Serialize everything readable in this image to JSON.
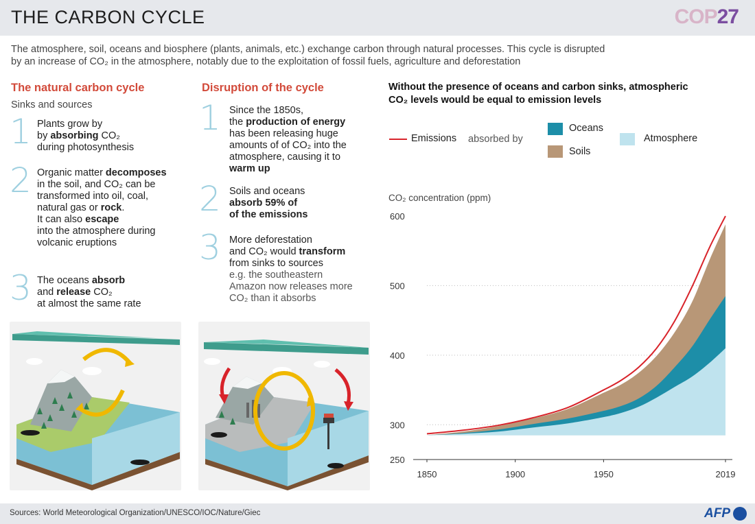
{
  "header": {
    "title": "THE CARBON CYCLE",
    "logo_part1": "COP",
    "logo_part2": "27"
  },
  "intro": {
    "line1": "The atmosphere, soil, oceans and biosphere (plants, animals, etc.) exchange carbon through natural processes. This cycle is disrupted",
    "line2": "by an increase of CO₂ in the atmosphere, notably due to the exploitation of fossil fuels, agriculture and deforestation"
  },
  "natural": {
    "heading": "The natural carbon cycle",
    "subheading": "Sinks and sources",
    "steps": [
      {
        "num": "1",
        "lines": [
          "Plants grow by",
          "by **absorbing** CO₂",
          "during photosynthesis"
        ]
      },
      {
        "num": "2",
        "lines": [
          "Organic matter **decomposes**",
          "in the soil, and CO₂ can be",
          "transformed into oil, coal,",
          "natural gas or **rock**.",
          "It can also **escape**",
          "into the atmosphere during",
          "volcanic eruptions"
        ]
      },
      {
        "num": "3",
        "lines": [
          "The oceans **absorb**",
          "and **release** CO₂",
          "at almost the same rate"
        ]
      }
    ]
  },
  "disruption": {
    "heading": "Disruption of the cycle",
    "steps": [
      {
        "num": "1",
        "lines": [
          "Since the 1850s,",
          "the **production of energy**",
          "has been releasing huge",
          "amounts of of CO₂ into the",
          "atmosphere, causing it to",
          "**warm up**"
        ]
      },
      {
        "num": "2",
        "lines": [
          "Soils and oceans",
          "**absorb 59% of**",
          "**of the emissions**"
        ]
      },
      {
        "num": "3",
        "lines": [
          "More deforestation",
          "and CO₂ would **transform**",
          "from sinks to sources",
          "~e.g. the southeastern",
          "~Amazon now releases more",
          "~CO₂ than it absorbs"
        ]
      }
    ]
  },
  "chart": {
    "title_line1": "Without the presence of oceans and carbon sinks, atmospheric",
    "title_line2": "CO₂ levels would be equal to emission levels",
    "legend_emissions": "Emissions",
    "legend_absorbed": "absorbed by",
    "legend_oceans": "Oceans",
    "legend_soils": "Soils",
    "legend_atmosphere": "Atmosphere",
    "ylabel": "CO₂ concentration (ppm)"
  },
  "chart_data": {
    "type": "area",
    "title": "Without the presence of oceans and carbon sinks, atmospheric CO₂ levels would be equal to emission levels",
    "ylabel": "CO₂ concentration (ppm)",
    "xlabel": "",
    "ylim": [
      250,
      600
    ],
    "xlim": [
      1850,
      2019
    ],
    "x_ticks": [
      1850,
      1900,
      1950,
      2019
    ],
    "y_ticks": [
      250,
      300,
      400,
      500,
      600
    ],
    "grid": "dotted horizontal",
    "legend_position": "top",
    "colors": {
      "emissions": "#d8232a",
      "oceans": "#1d8ea8",
      "soils": "#b89777",
      "atmosphere": "#bfe3ee"
    },
    "x": [
      1850,
      1870,
      1890,
      1910,
      1930,
      1950,
      1960,
      1970,
      1980,
      1990,
      2000,
      2010,
      2019
    ],
    "series": [
      {
        "name": "Atmosphere",
        "values": [
          285,
          287,
          290,
          296,
          302,
          311,
          317,
          326,
          339,
          354,
          369,
          389,
          410
        ]
      },
      {
        "name": "Oceans",
        "values": [
          285,
          288,
          293,
          301,
          309,
          320,
          327,
          338,
          356,
          382,
          412,
          451,
          485
        ]
      },
      {
        "name": "Soils",
        "values": [
          285,
          290,
          298,
          309,
          323,
          346,
          358,
          375,
          399,
          432,
          476,
          537,
          588
        ]
      },
      {
        "name": "Emissions",
        "values": [
          287,
          292,
          299,
          310,
          325,
          350,
          364,
          383,
          410,
          448,
          498,
          555,
          600
        ]
      }
    ]
  },
  "footer": {
    "sources": "Sources: World Meteorological Organization/UNESCO/IOC/Nature/Giec",
    "agency": "AFP"
  }
}
